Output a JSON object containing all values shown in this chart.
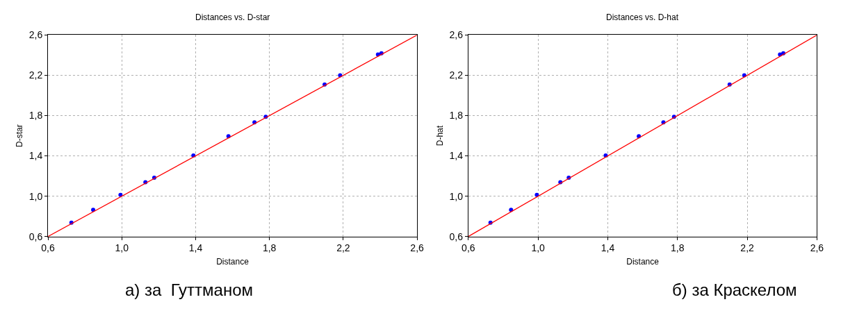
{
  "chart_data": [
    {
      "type": "scatter",
      "title": "Distances vs. D-star",
      "xlabel": "Distance",
      "ylabel": "D-star",
      "xlim": [
        0.6,
        2.6
      ],
      "ylim": [
        0.6,
        2.6
      ],
      "xticks": [
        {
          "value": 0.6,
          "label": "0,6"
        },
        {
          "value": 1.0,
          "label": "1,0"
        },
        {
          "value": 1.4,
          "label": "1,4"
        },
        {
          "value": 1.8,
          "label": "1,8"
        },
        {
          "value": 2.2,
          "label": "2,2"
        },
        {
          "value": 2.6,
          "label": "2,6"
        }
      ],
      "yticks": [
        {
          "value": 0.6,
          "label": "0,6"
        },
        {
          "value": 1.0,
          "label": "1,0"
        },
        {
          "value": 1.4,
          "label": "1,4"
        },
        {
          "value": 1.8,
          "label": "1,8"
        },
        {
          "value": 2.2,
          "label": "2,2"
        },
        {
          "value": 2.6,
          "label": "2,6"
        }
      ],
      "grid": true,
      "marker": "circle",
      "annotations": [
        "а) за  Гуттманом"
      ],
      "series": [
        {
          "color": "#0000ff",
          "x": [
            0.727,
            0.845,
            0.993,
            1.128,
            1.176,
            1.388,
            1.578,
            1.719,
            1.78,
            2.099,
            2.183,
            2.388,
            2.407
          ],
          "values": [
            0.738,
            0.865,
            1.013,
            1.138,
            1.184,
            1.404,
            1.595,
            1.733,
            1.789,
            2.108,
            2.2,
            2.406,
            2.419
          ]
        },
        {
          "type": "line",
          "color": "#ff0000",
          "marker": "none",
          "line_style": "solid",
          "x": [
            0.6,
            2.6
          ],
          "values": [
            0.6,
            2.6
          ]
        }
      ]
    },
    {
      "type": "scatter",
      "title": "Distances vs. D-hat",
      "xlabel": "Distance",
      "ylabel": "D-hat",
      "xlim": [
        0.6,
        2.6
      ],
      "ylim": [
        0.6,
        2.6
      ],
      "xticks": [
        {
          "value": 0.6,
          "label": "0,6"
        },
        {
          "value": 1.0,
          "label": "1,0"
        },
        {
          "value": 1.4,
          "label": "1,4"
        },
        {
          "value": 1.8,
          "label": "1,8"
        },
        {
          "value": 2.2,
          "label": "2,2"
        },
        {
          "value": 2.6,
          "label": "2,6"
        }
      ],
      "yticks": [
        {
          "value": 0.6,
          "label": "0,6"
        },
        {
          "value": 1.0,
          "label": "1,0"
        },
        {
          "value": 1.4,
          "label": "1,4"
        },
        {
          "value": 1.8,
          "label": "1,8"
        },
        {
          "value": 2.2,
          "label": "2,2"
        },
        {
          "value": 2.6,
          "label": "2,6"
        }
      ],
      "grid": true,
      "marker": "circle",
      "annotations": [
        "б) за Краскелом"
      ],
      "series": [
        {
          "color": "#0000ff",
          "x": [
            0.727,
            0.845,
            0.993,
            1.128,
            1.176,
            1.388,
            1.578,
            1.719,
            1.78,
            2.099,
            2.183,
            2.388,
            2.407
          ],
          "values": [
            0.738,
            0.865,
            1.013,
            1.138,
            1.184,
            1.404,
            1.595,
            1.733,
            1.789,
            2.108,
            2.2,
            2.406,
            2.419
          ]
        },
        {
          "type": "line",
          "color": "#ff0000",
          "marker": "none",
          "line_style": "solid",
          "x": [
            0.6,
            2.6
          ],
          "values": [
            0.6,
            2.6
          ]
        }
      ]
    }
  ]
}
